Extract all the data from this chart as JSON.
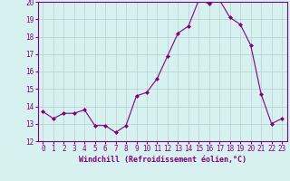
{
  "x": [
    0,
    1,
    2,
    3,
    4,
    5,
    6,
    7,
    8,
    9,
    10,
    11,
    12,
    13,
    14,
    15,
    16,
    17,
    18,
    19,
    20,
    21,
    22,
    23
  ],
  "y": [
    13.7,
    13.3,
    13.6,
    13.6,
    13.8,
    12.9,
    12.9,
    12.5,
    12.9,
    14.6,
    14.8,
    15.6,
    16.9,
    18.2,
    18.6,
    20.1,
    19.9,
    20.1,
    19.1,
    18.7,
    17.5,
    14.7,
    13.0,
    13.3
  ],
  "line_color": "#800080",
  "marker": "D",
  "marker_size": 2,
  "bg_color": "#d7f0f0",
  "grid_color": "#b8d0d0",
  "xlabel": "Windchill (Refroidissement éolien,°C)",
  "xlabel_color": "#800080",
  "tick_color": "#800080",
  "ylim": [
    12,
    20
  ],
  "yticks": [
    12,
    13,
    14,
    15,
    16,
    17,
    18,
    19,
    20
  ],
  "xticks": [
    0,
    1,
    2,
    3,
    4,
    5,
    6,
    7,
    8,
    9,
    10,
    11,
    12,
    13,
    14,
    15,
    16,
    17,
    18,
    19,
    20,
    21,
    22,
    23
  ],
  "spine_color": "#800080",
  "fig_bg_color": "#d7f0f0",
  "tick_fontsize": 5.5,
  "xlabel_fontsize": 6.0
}
